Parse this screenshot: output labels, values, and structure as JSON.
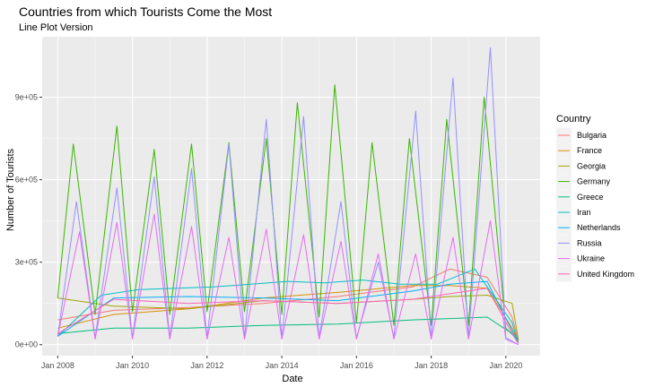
{
  "chart_data": {
    "type": "line",
    "title": "Countries from which Tourists Come the Most",
    "subtitle": "Line Plot Version",
    "xlabel": "Date",
    "ylabel": "Number of Tourists",
    "xlim": [
      "2007-08",
      "2020-12"
    ],
    "ylim": [
      -40000,
      1120000
    ],
    "x_ticks": [
      {
        "label": "Jan 2008",
        "value": "2008-01"
      },
      {
        "label": "Jan 2010",
        "value": "2010-01"
      },
      {
        "label": "Jan 2012",
        "value": "2012-01"
      },
      {
        "label": "Jan 2014",
        "value": "2014-01"
      },
      {
        "label": "Jan 2016",
        "value": "2016-01"
      },
      {
        "label": "Jan 2018",
        "value": "2018-01"
      },
      {
        "label": "Jan 2020",
        "value": "2020-01"
      }
    ],
    "y_ticks": [
      {
        "label": "0e+00",
        "value": 0
      },
      {
        "label": "3e+05",
        "value": 300000
      },
      {
        "label": "6e+05",
        "value": 600000
      },
      {
        "label": "9e+05",
        "value": 900000
      }
    ],
    "grid": true,
    "legend_title": "Country",
    "legend_position": "right",
    "series": [
      {
        "name": "Bulgaria",
        "color": "#F8766D",
        "x": [
          "2008-01",
          "2009-07",
          "2011-07",
          "2013-07",
          "2015-07",
          "2017-07",
          "2018-07",
          "2019-07",
          "2020-03",
          "2020-05"
        ],
        "values": [
          90000,
          125000,
          135000,
          150000,
          175000,
          210000,
          275000,
          245000,
          100000,
          15000
        ]
      },
      {
        "name": "France",
        "color": "#D89000",
        "x": [
          "2008-01",
          "2009-07",
          "2011-07",
          "2013-07",
          "2015-07",
          "2017-07",
          "2018-07",
          "2019-07",
          "2020-03",
          "2020-05"
        ],
        "values": [
          60000,
          110000,
          130000,
          170000,
          190000,
          215000,
          215000,
          205000,
          60000,
          10000
        ]
      },
      {
        "name": "Georgia",
        "color": "#A3A500",
        "x": [
          "2008-01",
          "2009-07",
          "2011-07",
          "2013-07",
          "2015-07",
          "2017-07",
          "2018-07",
          "2019-07",
          "2020-03",
          "2020-05"
        ],
        "values": [
          170000,
          140000,
          130000,
          160000,
          150000,
          165000,
          175000,
          180000,
          150000,
          20000
        ]
      },
      {
        "name": "Germany",
        "color": "#39B600",
        "x": [
          "2008-01",
          "2008-06",
          "2009-01",
          "2009-08",
          "2010-01",
          "2010-08",
          "2011-01",
          "2011-08",
          "2012-01",
          "2012-08",
          "2013-01",
          "2013-08",
          "2014-01",
          "2014-06",
          "2015-01",
          "2015-06",
          "2016-01",
          "2016-06",
          "2017-01",
          "2017-06",
          "2018-01",
          "2018-06",
          "2019-01",
          "2019-06",
          "2020-01",
          "2020-05"
        ],
        "values": [
          170000,
          730000,
          110000,
          795000,
          120000,
          710000,
          110000,
          730000,
          120000,
          735000,
          120000,
          750000,
          110000,
          880000,
          100000,
          945000,
          80000,
          735000,
          70000,
          750000,
          70000,
          820000,
          70000,
          900000,
          60000,
          15000
        ]
      },
      {
        "name": "Greece",
        "color": "#00BF7D",
        "x": [
          "2008-01",
          "2009-07",
          "2011-07",
          "2013-07",
          "2015-07",
          "2017-07",
          "2018-07",
          "2019-07",
          "2020-03",
          "2020-05"
        ],
        "values": [
          40000,
          60000,
          60000,
          70000,
          75000,
          90000,
          95000,
          100000,
          40000,
          5000
        ]
      },
      {
        "name": "Iran",
        "color": "#00BFC4",
        "x": [
          "2008-01",
          "2009-03",
          "2010-03",
          "2011-03",
          "2012-03",
          "2013-03",
          "2014-03",
          "2015-03",
          "2016-03",
          "2017-03",
          "2018-03",
          "2019-03",
          "2020-03",
          "2020-05"
        ],
        "values": [
          30000,
          180000,
          200000,
          205000,
          210000,
          220000,
          230000,
          225000,
          235000,
          220000,
          220000,
          275000,
          80000,
          5000
        ]
      },
      {
        "name": "Netherlands",
        "color": "#00B0F6",
        "x": [
          "2008-01",
          "2009-07",
          "2011-07",
          "2013-07",
          "2015-07",
          "2017-07",
          "2018-07",
          "2019-07",
          "2020-03",
          "2020-05"
        ],
        "values": [
          30000,
          170000,
          175000,
          170000,
          160000,
          195000,
          220000,
          230000,
          50000,
          5000
        ]
      },
      {
        "name": "Russia",
        "color": "#9590FF",
        "x": [
          "2008-01",
          "2008-07",
          "2009-01",
          "2009-08",
          "2010-01",
          "2010-08",
          "2011-01",
          "2011-08",
          "2012-01",
          "2012-08",
          "2013-01",
          "2013-08",
          "2014-01",
          "2014-08",
          "2015-01",
          "2015-08",
          "2016-01",
          "2016-08",
          "2017-01",
          "2017-08",
          "2018-01",
          "2018-08",
          "2019-01",
          "2019-08",
          "2020-01",
          "2020-05"
        ],
        "values": [
          30000,
          520000,
          25000,
          570000,
          25000,
          610000,
          25000,
          640000,
          25000,
          730000,
          25000,
          820000,
          25000,
          830000,
          25000,
          520000,
          25000,
          300000,
          25000,
          850000,
          25000,
          970000,
          25000,
          1080000,
          25000,
          0
        ]
      },
      {
        "name": "Ukraine",
        "color": "#E76BF3",
        "x": [
          "2008-01",
          "2008-08",
          "2009-01",
          "2009-08",
          "2010-01",
          "2010-08",
          "2011-01",
          "2011-08",
          "2012-01",
          "2012-08",
          "2013-01",
          "2013-08",
          "2014-01",
          "2014-08",
          "2015-01",
          "2015-08",
          "2016-01",
          "2016-08",
          "2017-01",
          "2017-08",
          "2018-01",
          "2018-08",
          "2019-01",
          "2019-08",
          "2020-01",
          "2020-05"
        ],
        "values": [
          30000,
          410000,
          20000,
          445000,
          20000,
          475000,
          20000,
          430000,
          20000,
          390000,
          20000,
          420000,
          20000,
          400000,
          20000,
          375000,
          20000,
          330000,
          20000,
          330000,
          20000,
          390000,
          20000,
          450000,
          20000,
          0
        ]
      },
      {
        "name": "United Kingdom",
        "color": "#FF62BC",
        "x": [
          "2008-01",
          "2009-07",
          "2011-07",
          "2013-07",
          "2015-07",
          "2017-07",
          "2018-07",
          "2019-07",
          "2020-03",
          "2020-05"
        ],
        "values": [
          40000,
          165000,
          150000,
          160000,
          150000,
          165000,
          185000,
          205000,
          40000,
          5000
        ]
      }
    ]
  }
}
